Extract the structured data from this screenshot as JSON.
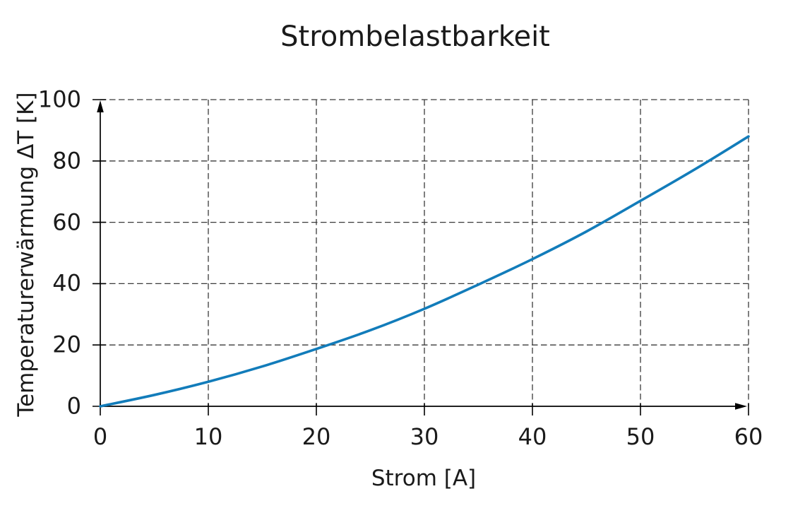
{
  "chart_data": {
    "type": "line",
    "title": "Strombelastbarkeit",
    "xlabel": "Strom [A]",
    "ylabel": "Temperaturerwärmung ΔT [K]",
    "xlim": [
      0,
      60
    ],
    "ylim": [
      0,
      100
    ],
    "xticks": [
      0,
      10,
      20,
      30,
      40,
      50,
      60
    ],
    "yticks": [
      0,
      20,
      40,
      60,
      80,
      100
    ],
    "grid": true,
    "grid_style": "dashed",
    "legend_position": "none",
    "axes_arrows": true,
    "series": [
      {
        "color": "#127cba",
        "points": [
          [
            0,
            0
          ],
          [
            5,
            3.7
          ],
          [
            10,
            8
          ],
          [
            15,
            13
          ],
          [
            20,
            18.7
          ],
          [
            25,
            24.8
          ],
          [
            30,
            31.8
          ],
          [
            35,
            39.7
          ],
          [
            40,
            48
          ],
          [
            45,
            57
          ],
          [
            50,
            67
          ],
          [
            55,
            77.2
          ],
          [
            60,
            88
          ]
        ]
      }
    ],
    "colors": {
      "axis": "#000000",
      "grid": "#3a3a3a",
      "text": "#1a1a1a",
      "background": "#ffffff"
    }
  }
}
